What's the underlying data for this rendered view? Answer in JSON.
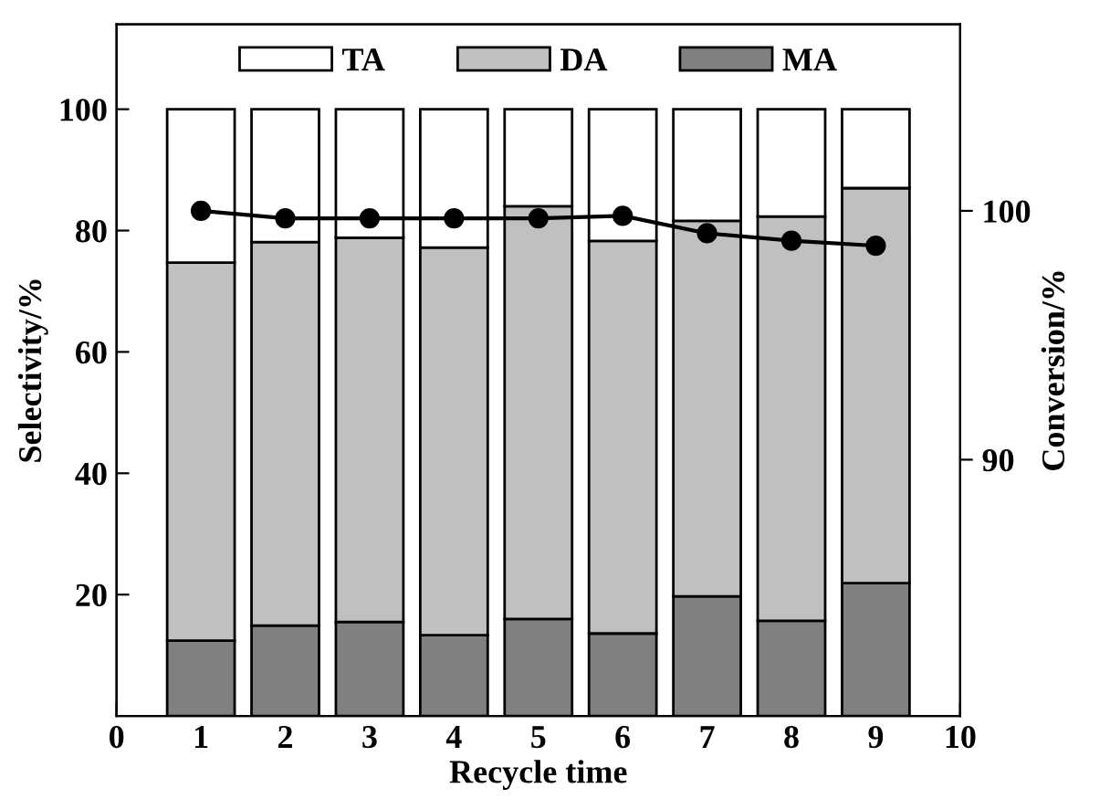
{
  "chart_data": {
    "type": "bar",
    "stacked": true,
    "xlabel": "Recycle time",
    "ylabel": "Selectivity/%",
    "y2label": "Conversion/%",
    "x": [
      1,
      2,
      3,
      4,
      5,
      6,
      7,
      8,
      9
    ],
    "xlim": [
      0,
      10
    ],
    "xticks": [
      0,
      1,
      2,
      3,
      4,
      5,
      6,
      7,
      8,
      9,
      10
    ],
    "ylim": [
      0,
      114
    ],
    "yticks": [
      20,
      40,
      60,
      80,
      100
    ],
    "y2lim": [
      79.7,
      107.5
    ],
    "y2ticks": [
      90,
      100
    ],
    "series": [
      {
        "name": "MA",
        "color": "#808080",
        "values": [
          12.4,
          14.9,
          15.5,
          13.3,
          16.0,
          13.6,
          19.7,
          15.7,
          21.9
        ]
      },
      {
        "name": "DA",
        "color": "#c0c0c0",
        "values": [
          62.3,
          63.2,
          63.3,
          63.9,
          68.0,
          64.7,
          61.9,
          66.6,
          65.1
        ]
      },
      {
        "name": "TA",
        "color": "#ffffff",
        "values": [
          25.3,
          21.9,
          21.2,
          22.8,
          16.0,
          21.7,
          18.4,
          17.7,
          13.0
        ]
      },
      {
        "type": "line",
        "axis": "y2",
        "color": "#000000",
        "marker": "circle",
        "values": [
          100,
          99.7,
          99.7,
          99.7,
          99.7,
          99.8,
          99.1,
          98.8,
          98.6
        ]
      }
    ],
    "legend": "top",
    "grid": false
  }
}
